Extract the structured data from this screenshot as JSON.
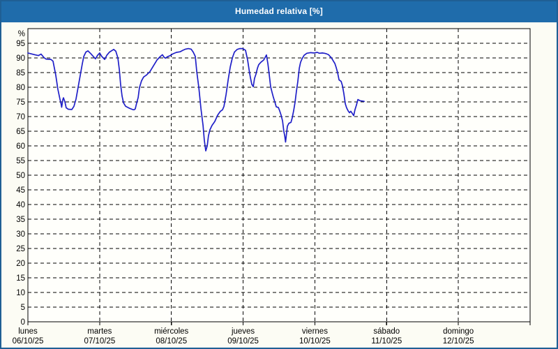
{
  "window": {
    "title": "Humedad relativa [%]"
  },
  "colors": {
    "title_bar": "#1F6CAB",
    "page_border": "#1F5F94",
    "background": "#FCFCF4",
    "plot_background": "#FFFFFB",
    "grid": "#000000",
    "axis": "#000000",
    "line": "#1F1FC8"
  },
  "chart_data": {
    "type": "line",
    "title": "Humedad relativa [%]",
    "y_unit_label": "%",
    "ylim": [
      0,
      100
    ],
    "y_ticks": [
      0,
      5,
      10,
      15,
      20,
      25,
      30,
      35,
      40,
      45,
      50,
      55,
      60,
      65,
      70,
      75,
      80,
      85,
      90,
      95
    ],
    "x_total_hours": 168,
    "grid": {
      "style": "dashed",
      "horizontal_every": 5,
      "vertical": "day-boundaries"
    },
    "x_axis": {
      "days": [
        {
          "name": "lunes",
          "date": "06/10/25"
        },
        {
          "name": "martes",
          "date": "07/10/25"
        },
        {
          "name": "miércoles",
          "date": "08/10/25"
        },
        {
          "name": "jueves",
          "date": "09/10/25"
        },
        {
          "name": "viernes",
          "date": "10/10/25"
        },
        {
          "name": "sábado",
          "date": "11/10/25"
        },
        {
          "name": "domingo",
          "date": "12/10/25"
        }
      ]
    },
    "series": [
      {
        "name": "Humedad relativa",
        "color": "#1F1FC8",
        "points_hours_value": [
          [
            0,
            91.7
          ],
          [
            2.3,
            91.1
          ],
          [
            3.5,
            90.8
          ],
          [
            4.4,
            91.3
          ],
          [
            5.4,
            90.1
          ],
          [
            6.1,
            89.6
          ],
          [
            7.7,
            89.5
          ],
          [
            8.4,
            88.9
          ],
          [
            9.3,
            84.2
          ],
          [
            10,
            79.4
          ],
          [
            10.7,
            76
          ],
          [
            11.1,
            74.3
          ],
          [
            11.3,
            73.2
          ],
          [
            11.7,
            75.8
          ],
          [
            11.9,
            76.4
          ],
          [
            12.4,
            75
          ],
          [
            12.8,
            73
          ],
          [
            13.5,
            72.5
          ],
          [
            14.7,
            72.4
          ],
          [
            15.4,
            73.5
          ],
          [
            16.1,
            76
          ],
          [
            16.8,
            80
          ],
          [
            17.5,
            84
          ],
          [
            18.2,
            88
          ],
          [
            18.7,
            90.5
          ],
          [
            19.4,
            92
          ],
          [
            20.1,
            92.4
          ],
          [
            21,
            91.5
          ],
          [
            21.7,
            90.7
          ],
          [
            22.6,
            89.7
          ],
          [
            23.3,
            90.9
          ],
          [
            24,
            91.7
          ],
          [
            24.7,
            90.5
          ],
          [
            25.7,
            89.5
          ],
          [
            26.4,
            90.9
          ],
          [
            27.3,
            92
          ],
          [
            28.7,
            92.9
          ],
          [
            29.4,
            92.3
          ],
          [
            30.1,
            90
          ],
          [
            30.6,
            86
          ],
          [
            31,
            81
          ],
          [
            31.5,
            77
          ],
          [
            32,
            74.7
          ],
          [
            32.7,
            73.5
          ],
          [
            33.8,
            72.9
          ],
          [
            35,
            72.4
          ],
          [
            35.5,
            72.3
          ],
          [
            35.9,
            72.6
          ],
          [
            36.4,
            74.7
          ],
          [
            36.9,
            76.5
          ],
          [
            37.3,
            79.8
          ],
          [
            38,
            82.2
          ],
          [
            38.7,
            83.5
          ],
          [
            39.7,
            84.2
          ],
          [
            40.8,
            85.3
          ],
          [
            42,
            87.3
          ],
          [
            43.2,
            89.3
          ],
          [
            44.3,
            90.5
          ],
          [
            45,
            91.1
          ],
          [
            45.5,
            90.3
          ],
          [
            46,
            89.9
          ],
          [
            46.7,
            90.4
          ],
          [
            47.6,
            90.8
          ],
          [
            48.5,
            91.4
          ],
          [
            49.7,
            91.9
          ],
          [
            50.9,
            92.1
          ],
          [
            51.8,
            92.6
          ],
          [
            52.7,
            93
          ],
          [
            53.7,
            93.2
          ],
          [
            54.6,
            93
          ],
          [
            55.3,
            92
          ],
          [
            56,
            90.5
          ],
          [
            56.5,
            85.3
          ],
          [
            57.2,
            79.8
          ],
          [
            57.9,
            72.7
          ],
          [
            58.6,
            67
          ],
          [
            59,
            62
          ],
          [
            59.5,
            58.3
          ],
          [
            60,
            60
          ],
          [
            60.4,
            63.5
          ],
          [
            60.9,
            65.5
          ],
          [
            61.6,
            67
          ],
          [
            62.5,
            68.3
          ],
          [
            63.5,
            70.5
          ],
          [
            64.4,
            71.8
          ],
          [
            65.1,
            72.3
          ],
          [
            65.6,
            73.5
          ],
          [
            66.3,
            77.5
          ],
          [
            67,
            82.5
          ],
          [
            67.7,
            86.9
          ],
          [
            68.4,
            90
          ],
          [
            69.1,
            92
          ],
          [
            70,
            92.9
          ],
          [
            70.9,
            93.2
          ],
          [
            71.9,
            93.2
          ],
          [
            72.8,
            92.6
          ],
          [
            73.5,
            89.3
          ],
          [
            74,
            86
          ],
          [
            74.4,
            83.4
          ],
          [
            74.9,
            81
          ],
          [
            75.4,
            80.2
          ],
          [
            75.8,
            83
          ],
          [
            76.3,
            84.5
          ],
          [
            76.8,
            86.5
          ],
          [
            77.2,
            87.7
          ],
          [
            77.9,
            88.5
          ],
          [
            78.9,
            89.3
          ],
          [
            79.3,
            90.1
          ],
          [
            79.8,
            91
          ],
          [
            80.3,
            88
          ],
          [
            80.7,
            84.5
          ],
          [
            81.2,
            80.2
          ],
          [
            81.7,
            78.2
          ],
          [
            82.1,
            76.6
          ],
          [
            82.6,
            75
          ],
          [
            83.1,
            73.3
          ],
          [
            83.8,
            73.1
          ],
          [
            84.2,
            72
          ],
          [
            84.7,
            70.5
          ],
          [
            85.2,
            68.5
          ],
          [
            85.6,
            65
          ],
          [
            85.9,
            63.6
          ],
          [
            86.2,
            61.3
          ],
          [
            86.6,
            64.8
          ],
          [
            86.8,
            66.7
          ],
          [
            87.3,
            67.7
          ],
          [
            88,
            68
          ],
          [
            88.4,
            69.5
          ],
          [
            88.9,
            72
          ],
          [
            89.4,
            75
          ],
          [
            89.8,
            78.5
          ],
          [
            90.3,
            82
          ],
          [
            90.8,
            86.5
          ],
          [
            91.2,
            88.5
          ],
          [
            91.7,
            89.7
          ],
          [
            92.4,
            90.9
          ],
          [
            93.3,
            91.6
          ],
          [
            94.5,
            91.8
          ],
          [
            95.7,
            91.7
          ],
          [
            96.8,
            91.9
          ],
          [
            97.5,
            91.6
          ],
          [
            98.5,
            91.7
          ],
          [
            99.2,
            91.6
          ],
          [
            99.9,
            91.4
          ],
          [
            100.6,
            91.1
          ],
          [
            101,
            90.6
          ],
          [
            101.5,
            90.1
          ],
          [
            102.2,
            88.9
          ],
          [
            102.7,
            88.1
          ],
          [
            103.1,
            86.8
          ],
          [
            103.6,
            85
          ],
          [
            104.1,
            82.5
          ],
          [
            104.8,
            82
          ],
          [
            105.2,
            80.6
          ],
          [
            105.7,
            77.8
          ],
          [
            106.2,
            74.3
          ],
          [
            106.6,
            73
          ],
          [
            107.1,
            72
          ],
          [
            107.6,
            71.3
          ],
          [
            108,
            71.8
          ],
          [
            108.5,
            71.1
          ],
          [
            109,
            70.3
          ],
          [
            109.4,
            72.3
          ],
          [
            109.9,
            73.9
          ],
          [
            110.4,
            75.8
          ],
          [
            111.1,
            75.4
          ],
          [
            111.8,
            75.3
          ],
          [
            112.5,
            75.2
          ]
        ]
      }
    ]
  }
}
